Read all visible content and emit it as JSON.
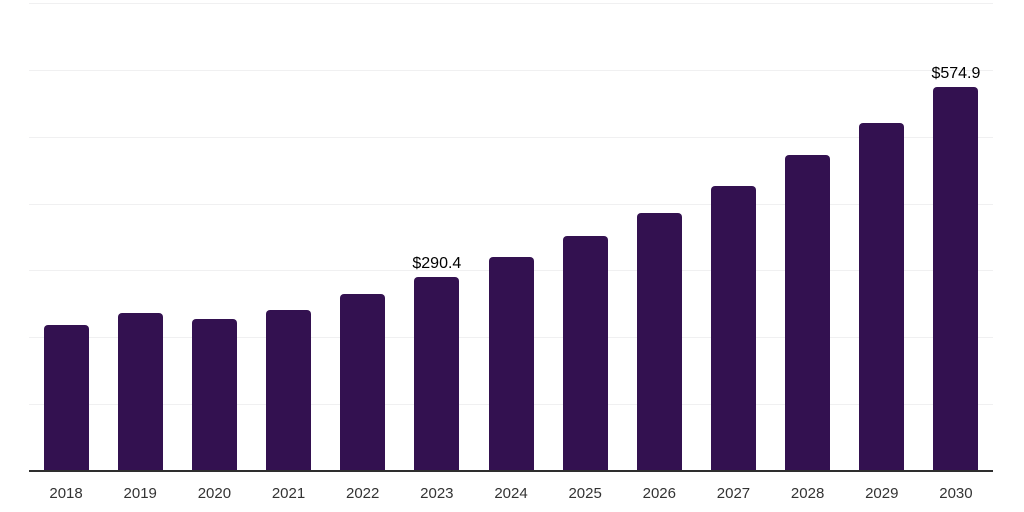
{
  "chart_data": {
    "type": "bar",
    "title": "",
    "xlabel": "",
    "ylabel": "",
    "categories": [
      "2018",
      "2019",
      "2020",
      "2021",
      "2022",
      "2023",
      "2024",
      "2025",
      "2026",
      "2027",
      "2028",
      "2029",
      "2030"
    ],
    "values": [
      217.9,
      237.0,
      226.8,
      241.2,
      264.8,
      290.4,
      320.1,
      351.2,
      385.8,
      426.9,
      472.3,
      520.1,
      574.9
    ],
    "data_labels": [
      "",
      "",
      "",
      "",
      "",
      "$290.4",
      "",
      "",
      "",
      "",
      "",
      "",
      "$574.9"
    ],
    "ylim": [
      0,
      700
    ],
    "gridline_step": 100,
    "grid": "horizontal",
    "legend_position": "none",
    "colors": {
      "bar": "#331150",
      "axis_line": "#2e2e2e",
      "gridline": "#f0f0f1",
      "value_label": "#000000",
      "x_label": "#333333",
      "background": "#ffffff"
    }
  }
}
